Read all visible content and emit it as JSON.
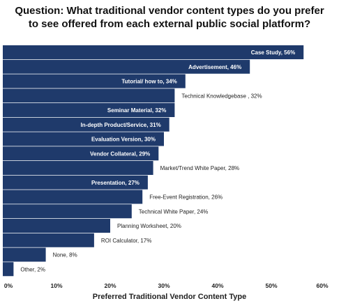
{
  "title": {
    "line1": "Question: What traditional vendor content types do you prefer",
    "line2": "to see offered from each external public social platform?"
  },
  "chart_data": {
    "type": "bar",
    "orientation": "horizontal",
    "categories": [
      "Case Study, 56%",
      "Advertisement, 46%",
      "Tutorial/ how to, 34%",
      "Technical Knowledgebase , 32%",
      "Seminar Material, 32%",
      "In-depth Product/Service, 31%",
      "Evaluation Version, 30%",
      "Vendor Collateral, 29%",
      "Market/Trend White Paper, 28%",
      "Presentation, 27%",
      "Free-Event Registration, 26%",
      "Technical White Paper, 24%",
      "Planning Worksheet, 20%",
      "ROI Calculator, 17%",
      "None, 8%",
      "Other, 2%"
    ],
    "values": [
      56,
      46,
      34,
      32,
      32,
      31,
      30,
      29,
      28,
      27,
      26,
      24,
      20,
      17,
      8,
      2
    ],
    "xlim": [
      0,
      60
    ],
    "xticks": [
      "0%",
      "10%",
      "20%",
      "30%",
      "40%",
      "50%",
      "60%"
    ],
    "xlabel": "Preferred Traditional Vendor Content Type",
    "bar_color": "#1f3a6b",
    "grid": false
  }
}
